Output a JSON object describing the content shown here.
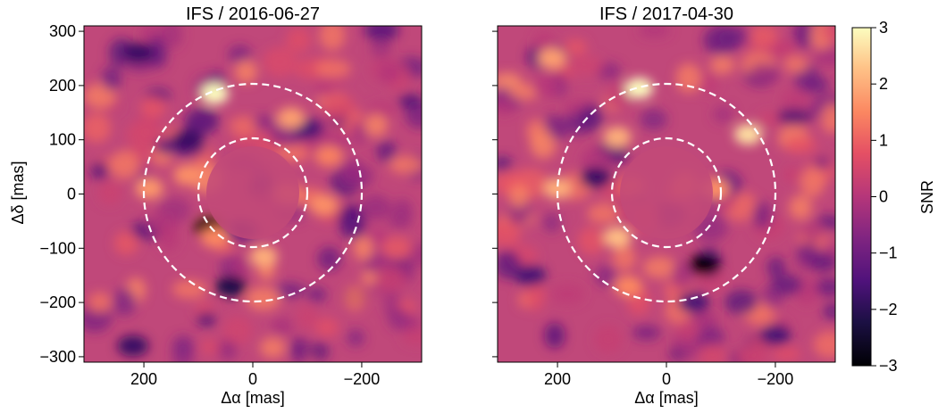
{
  "chart_data": {
    "type": "heatmap",
    "panels": [
      {
        "title": "IFS / 2016-06-27",
        "xlabel": "Δα [mas]",
        "ylabel": "Δδ [mas]",
        "xlim": [
          310,
          -310
        ],
        "ylim": [
          -310,
          310
        ],
        "x_ticks": [
          200,
          0,
          -200
        ],
        "x_tick_labels": [
          "200",
          "0",
          "−200"
        ],
        "y_ticks": [
          300,
          200,
          100,
          0,
          -100,
          -200,
          -300
        ],
        "y_tick_labels": [
          "300",
          "200",
          "100",
          "0",
          "−100",
          "−200",
          "−300"
        ],
        "circles_mas_radius": [
          100,
          200
        ],
        "bright_spots": [
          {
            "x": 70,
            "y": 185,
            "snr": 3.0
          },
          {
            "x": -70,
            "y": 140,
            "snr": 1.8
          },
          {
            "x": 120,
            "y": 35,
            "snr": 1.6
          },
          {
            "x": 190,
            "y": 10,
            "snr": 1.7
          },
          {
            "x": -20,
            "y": -115,
            "snr": 2.0
          },
          {
            "x": 70,
            "y": -80,
            "snr": 1.5
          },
          {
            "x": -130,
            "y": -20,
            "snr": 1.6
          },
          {
            "x": -140,
            "y": 70,
            "snr": 1.4
          }
        ],
        "dark_spots": [
          {
            "x": 80,
            "y": -60,
            "snr": -3.0
          },
          {
            "x": 40,
            "y": -170,
            "snr": -2.2
          },
          {
            "x": 120,
            "y": 100,
            "snr": -1.8
          },
          {
            "x": -100,
            "y": 120,
            "snr": -1.6
          },
          {
            "x": 210,
            "y": 260,
            "snr": -1.8
          },
          {
            "x": 220,
            "y": -280,
            "snr": -1.8
          }
        ]
      },
      {
        "title": "IFS / 2017-04-30",
        "xlabel": "Δα [mas]",
        "xlim": [
          310,
          -310
        ],
        "ylim": [
          -310,
          310
        ],
        "x_ticks": [
          200,
          0,
          -200
        ],
        "x_tick_labels": [
          "200",
          "0",
          "−200"
        ],
        "circles_mas_radius": [
          100,
          200
        ],
        "bright_spots": [
          {
            "x": 50,
            "y": 195,
            "snr": 3.0
          },
          {
            "x": -150,
            "y": 110,
            "snr": 2.6
          },
          {
            "x": 90,
            "y": 105,
            "snr": 2.0
          },
          {
            "x": 200,
            "y": 10,
            "snr": 2.0
          },
          {
            "x": 90,
            "y": -80,
            "snr": 2.2
          },
          {
            "x": -90,
            "y": 10,
            "snr": 1.6
          },
          {
            "x": 70,
            "y": -170,
            "snr": 1.5
          },
          {
            "x": 210,
            "y": 250,
            "snr": 1.8
          }
        ],
        "dark_spots": [
          {
            "x": -70,
            "y": -130,
            "snr": -3.0
          },
          {
            "x": 130,
            "y": 30,
            "snr": -1.8
          },
          {
            "x": -50,
            "y": -200,
            "snr": -1.6
          },
          {
            "x": 250,
            "y": -150,
            "snr": -1.6
          },
          {
            "x": -200,
            "y": -260,
            "snr": -1.6
          }
        ]
      }
    ],
    "colorbar": {
      "label": "SNR",
      "colormap": "magma",
      "range": [
        -3,
        3
      ],
      "ticks": [
        3,
        2,
        1,
        0,
        -1,
        -2,
        -3
      ],
      "tick_labels": [
        "3",
        "2",
        "1",
        "0",
        "−1",
        "−2",
        "−3"
      ]
    },
    "colors": {
      "background": "#c0487a",
      "circle_stroke": "#ffffff"
    }
  }
}
